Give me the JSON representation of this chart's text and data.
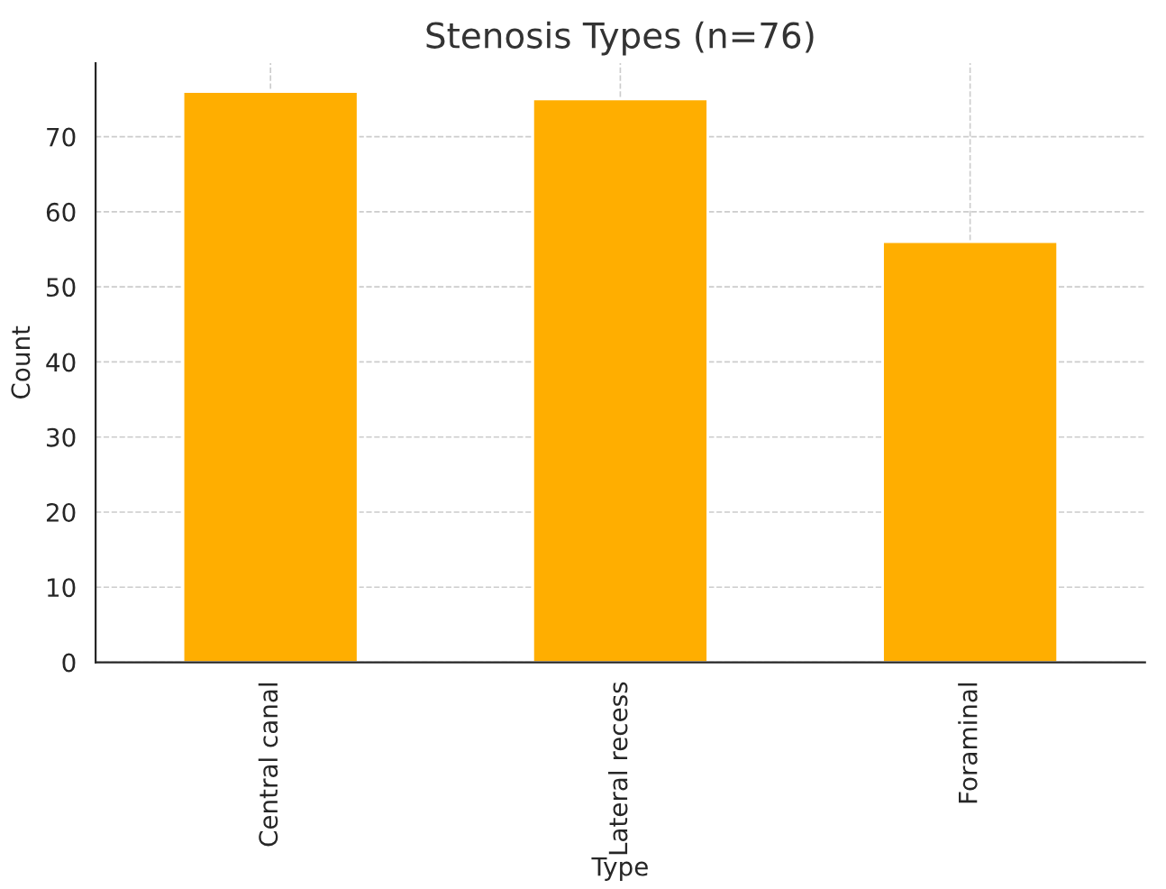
{
  "chart_data": {
    "type": "bar",
    "title": "Stenosis Types (n=76)",
    "xlabel": "Type",
    "ylabel": "Count",
    "categories": [
      "Central canal",
      "Lateral recess",
      "Foraminal"
    ],
    "values": [
      76,
      75,
      56
    ],
    "color": "#ffae00",
    "ylim": [
      0,
      79.8
    ],
    "yticks": [
      0,
      10,
      20,
      30,
      40,
      50,
      60,
      70
    ],
    "grid": true
  }
}
